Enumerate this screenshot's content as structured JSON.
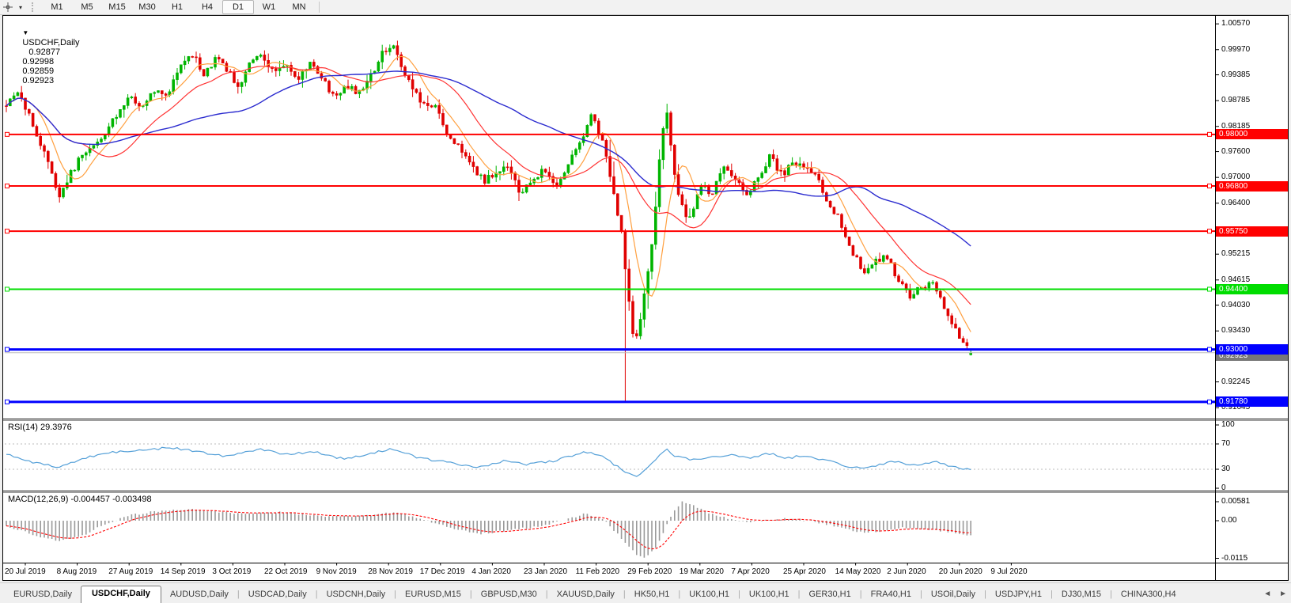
{
  "toolbar": {
    "timeframes": [
      "M1",
      "M5",
      "M15",
      "M30",
      "H1",
      "H4",
      "D1",
      "W1",
      "MN"
    ],
    "active_timeframe": "D1",
    "cursor_dropdown_glyph": "▾"
  },
  "chart": {
    "title": {
      "marker": "▼",
      "symbol_period": "USDCHF,Daily",
      "open": "0.92877",
      "high": "0.92998",
      "low": "0.92859",
      "close": "0.92923"
    },
    "rsi_label": "RSI(14) 29.3976",
    "macd_label": "MACD(12,26,9) -0.004457 -0.003498"
  },
  "chart_data": {
    "type": "candlestick",
    "symbol": "USDCHF",
    "timeframe": "Daily",
    "last_bar": {
      "open": 0.92877,
      "high": 0.92998,
      "low": 0.92859,
      "close": 0.92923
    },
    "bars": 255,
    "price_axis_ticks": [
      1.0057,
      0.9997,
      0.99385,
      0.98785,
      0.98185,
      0.976,
      0.97,
      0.964,
      0.95215,
      0.94615,
      0.9403,
      0.9343,
      0.92245,
      0.91645
    ],
    "hlines": [
      {
        "price": 0.98,
        "tag": "0.98000",
        "color": "#ff0000",
        "width": 2
      },
      {
        "price": 0.968,
        "tag": "0.96800",
        "color": "#ff0000",
        "width": 2
      },
      {
        "price": 0.9575,
        "tag": "0.95750",
        "color": "#ff0000",
        "width": 2
      },
      {
        "price": 0.944,
        "tag": "0.94400",
        "color": "#00dd00",
        "width": 2
      },
      {
        "price": 0.93,
        "tag": "0.93000",
        "color": "#0000ff",
        "width": 3
      },
      {
        "price": 0.9178,
        "tag": "0.91780",
        "color": "#0000ff",
        "width": 3
      }
    ],
    "bid": {
      "price": 0.92923,
      "tag": "0.92923",
      "line_color": "#bcbcbc",
      "tag_color": "#787878"
    },
    "ma_colors": {
      "fast_orange": "#ffa040",
      "medium_red": "#ff3333",
      "slow_blue": "#2b2bcf"
    },
    "candle_colors": {
      "up": "#00b400",
      "down": "#e00000"
    },
    "price_anchors": [
      [
        0,
        0.9865
      ],
      [
        0.01,
        0.9902
      ],
      [
        0.022,
        0.9852
      ],
      [
        0.032,
        0.9788
      ],
      [
        0.045,
        0.973
      ],
      [
        0.055,
        0.9652
      ],
      [
        0.065,
        0.9705
      ],
      [
        0.078,
        0.9748
      ],
      [
        0.09,
        0.9775
      ],
      [
        0.1,
        0.979
      ],
      [
        0.115,
        0.985
      ],
      [
        0.13,
        0.9888
      ],
      [
        0.142,
        0.986
      ],
      [
        0.155,
        0.9908
      ],
      [
        0.168,
        0.9895
      ],
      [
        0.18,
        0.9962
      ],
      [
        0.195,
        0.9985
      ],
      [
        0.205,
        0.994
      ],
      [
        0.218,
        0.9978
      ],
      [
        0.23,
        0.995
      ],
      [
        0.24,
        0.9908
      ],
      [
        0.253,
        0.9968
      ],
      [
        0.265,
        0.9988
      ],
      [
        0.278,
        0.9942
      ],
      [
        0.29,
        0.9972
      ],
      [
        0.302,
        0.9922
      ],
      [
        0.315,
        0.997
      ],
      [
        0.328,
        0.9928
      ],
      [
        0.34,
        0.9882
      ],
      [
        0.352,
        0.9915
      ],
      [
        0.365,
        0.9892
      ],
      [
        0.378,
        0.9935
      ],
      [
        0.392,
        0.9998
      ],
      [
        0.402,
        1.0008
      ],
      [
        0.415,
        0.993
      ],
      [
        0.43,
        0.9878
      ],
      [
        0.445,
        0.986
      ],
      [
        0.458,
        0.9798
      ],
      [
        0.47,
        0.9768
      ],
      [
        0.483,
        0.9722
      ],
      [
        0.495,
        0.9692
      ],
      [
        0.508,
        0.9712
      ],
      [
        0.52,
        0.9725
      ],
      [
        0.532,
        0.9665
      ],
      [
        0.545,
        0.9692
      ],
      [
        0.557,
        0.9718
      ],
      [
        0.57,
        0.9678
      ],
      [
        0.582,
        0.9728
      ],
      [
        0.595,
        0.9778
      ],
      [
        0.607,
        0.9842
      ],
      [
        0.618,
        0.9788
      ],
      [
        0.63,
        0.9665
      ],
      [
        0.638,
        0.957
      ],
      [
        0.645,
        0.942
      ],
      [
        0.651,
        0.9312
      ],
      [
        0.658,
        0.9382
      ],
      [
        0.665,
        0.9468
      ],
      [
        0.672,
        0.9598
      ],
      [
        0.679,
        0.979
      ],
      [
        0.684,
        0.9862
      ],
      [
        0.69,
        0.975
      ],
      [
        0.698,
        0.9645
      ],
      [
        0.708,
        0.96
      ],
      [
        0.72,
        0.9682
      ],
      [
        0.732,
        0.9662
      ],
      [
        0.744,
        0.9722
      ],
      [
        0.755,
        0.9692
      ],
      [
        0.768,
        0.9662
      ],
      [
        0.78,
        0.9702
      ],
      [
        0.792,
        0.9752
      ],
      [
        0.804,
        0.9705
      ],
      [
        0.816,
        0.9732
      ],
      [
        0.828,
        0.972
      ],
      [
        0.84,
        0.97
      ],
      [
        0.852,
        0.9642
      ],
      [
        0.864,
        0.9602
      ],
      [
        0.876,
        0.9532
      ],
      [
        0.888,
        0.9482
      ],
      [
        0.9,
        0.9502
      ],
      [
        0.912,
        0.9522
      ],
      [
        0.924,
        0.9462
      ],
      [
        0.936,
        0.9422
      ],
      [
        0.948,
        0.9442
      ],
      [
        0.96,
        0.9462
      ],
      [
        0.972,
        0.9402
      ],
      [
        0.985,
        0.9342
      ],
      [
        1,
        0.9292
      ]
    ],
    "spike_low": {
      "t": 0.643,
      "price": 0.918
    },
    "rsi": {
      "label": "RSI(14)",
      "value": 29.3976,
      "levels": [
        70,
        30
      ],
      "axis_ticks": [
        100,
        70,
        30,
        0
      ],
      "line_color": "#55a0d8",
      "anchors": [
        [
          0,
          55
        ],
        [
          0.03,
          40
        ],
        [
          0.055,
          32
        ],
        [
          0.08,
          48
        ],
        [
          0.11,
          57
        ],
        [
          0.14,
          60
        ],
        [
          0.17,
          64
        ],
        [
          0.2,
          58
        ],
        [
          0.23,
          50
        ],
        [
          0.26,
          62
        ],
        [
          0.29,
          54
        ],
        [
          0.32,
          58
        ],
        [
          0.35,
          46
        ],
        [
          0.38,
          55
        ],
        [
          0.4,
          63
        ],
        [
          0.43,
          47
        ],
        [
          0.46,
          40
        ],
        [
          0.49,
          34
        ],
        [
          0.52,
          44
        ],
        [
          0.54,
          37
        ],
        [
          0.57,
          44
        ],
        [
          0.6,
          58
        ],
        [
          0.62,
          48
        ],
        [
          0.64,
          28
        ],
        [
          0.651,
          18
        ],
        [
          0.663,
          30
        ],
        [
          0.675,
          48
        ],
        [
          0.684,
          62
        ],
        [
          0.695,
          50
        ],
        [
          0.71,
          45
        ],
        [
          0.73,
          50
        ],
        [
          0.75,
          52
        ],
        [
          0.77,
          48
        ],
        [
          0.79,
          55
        ],
        [
          0.81,
          48
        ],
        [
          0.83,
          52
        ],
        [
          0.85,
          44
        ],
        [
          0.87,
          36
        ],
        [
          0.885,
          31
        ],
        [
          0.9,
          36
        ],
        [
          0.92,
          43
        ],
        [
          0.935,
          35
        ],
        [
          0.95,
          39
        ],
        [
          0.965,
          42
        ],
        [
          0.978,
          34
        ],
        [
          0.99,
          32
        ],
        [
          1,
          29.4
        ]
      ]
    },
    "macd": {
      "label": "MACD(12,26,9)",
      "main_value": -0.004457,
      "signal_value": -0.003498,
      "axis_ticks": [
        {
          "v": 0.00581,
          "label": "0.00581"
        },
        {
          "v": 0,
          "label": "0.00"
        },
        {
          "v": -0.0115,
          "label": "-0.0115"
        }
      ],
      "histogram_color": "#c9c9c9",
      "histogram_stroke": "#9a9a9a",
      "signal_color": "#ff0000",
      "anchors": [
        [
          0,
          -0.0015
        ],
        [
          0.03,
          -0.0045
        ],
        [
          0.055,
          -0.0062
        ],
        [
          0.08,
          -0.0045
        ],
        [
          0.1,
          -0.0012
        ],
        [
          0.13,
          0.0018
        ],
        [
          0.16,
          0.003
        ],
        [
          0.19,
          0.0036
        ],
        [
          0.22,
          0.0026
        ],
        [
          0.25,
          0.002
        ],
        [
          0.28,
          0.0026
        ],
        [
          0.31,
          0.002
        ],
        [
          0.34,
          0.0012
        ],
        [
          0.37,
          0.0016
        ],
        [
          0.4,
          0.0026
        ],
        [
          0.43,
          0.0006
        ],
        [
          0.46,
          -0.0022
        ],
        [
          0.49,
          -0.004
        ],
        [
          0.52,
          -0.003
        ],
        [
          0.55,
          -0.0018
        ],
        [
          0.58,
          0.0002
        ],
        [
          0.6,
          0.0022
        ],
        [
          0.62,
          0.0002
        ],
        [
          0.638,
          -0.0055
        ],
        [
          0.652,
          -0.01
        ],
        [
          0.663,
          -0.0115
        ],
        [
          0.675,
          -0.0078
        ],
        [
          0.688,
          0.001
        ],
        [
          0.7,
          0.0058
        ],
        [
          0.715,
          0.0042
        ],
        [
          0.73,
          0.0022
        ],
        [
          0.75,
          0.0006
        ],
        [
          0.77,
          -0.0004
        ],
        [
          0.79,
          0.0002
        ],
        [
          0.81,
          0.0006
        ],
        [
          0.83,
          0.0001
        ],
        [
          0.85,
          -0.001
        ],
        [
          0.87,
          -0.0026
        ],
        [
          0.89,
          -0.0036
        ],
        [
          0.91,
          -0.003
        ],
        [
          0.93,
          -0.0022
        ],
        [
          0.95,
          -0.0026
        ],
        [
          0.97,
          -0.0031
        ],
        [
          0.985,
          -0.0039
        ],
        [
          1,
          -0.004457
        ]
      ]
    },
    "x_labels": [
      "20 Jul 2019",
      "8 Aug 2019",
      "27 Aug 2019",
      "14 Sep 2019",
      "3 Oct 2019",
      "22 Oct 2019",
      "9 Nov 2019",
      "28 Nov 2019",
      "17 Dec 2019",
      "4 Jan 2020",
      "23 Jan 2020",
      "11 Feb 2020",
      "29 Feb 2020",
      "19 Mar 2020",
      "7 Apr 2020",
      "25 Apr 2020",
      "14 May 2020",
      "2 Jun 2020",
      "20 Jun 2020",
      "9 Jul 2020"
    ]
  },
  "tabs": {
    "items": [
      "EURUSD,Daily",
      "USDCHF,Daily",
      "AUDUSD,Daily",
      "USDCAD,Daily",
      "USDCNH,Daily",
      "EURUSD,M15",
      "GBPUSD,M30",
      "XAUUSD,Daily",
      "HK50,H1",
      "UK100,H1",
      "UK100,H1",
      "GER30,H1",
      "FRA40,H1",
      "USOil,Daily",
      "USDJPY,H1",
      "DJ30,M15",
      "CHINA300,H4"
    ],
    "active_index": 1,
    "scroll_left_glyph": "◄",
    "scroll_right_glyph": "►"
  }
}
